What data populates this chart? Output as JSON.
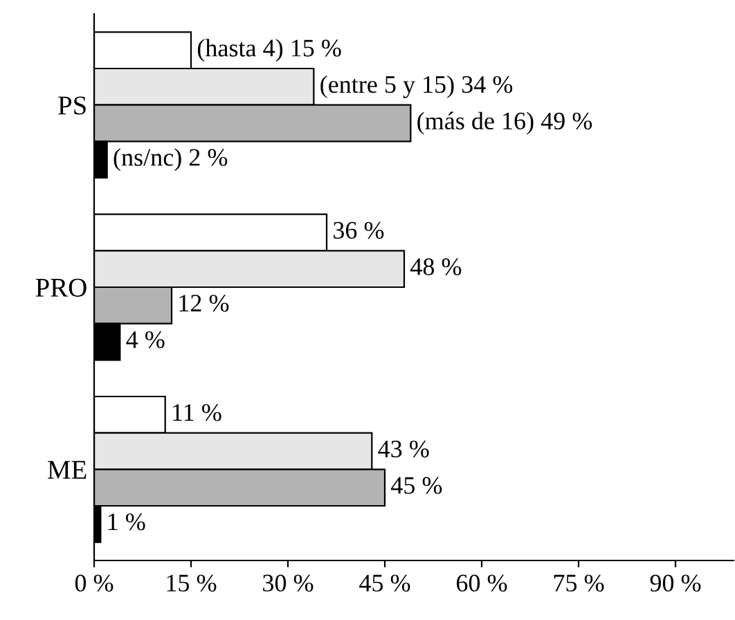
{
  "chart_data": {
    "type": "bar",
    "orientation": "horizontal",
    "categories": [
      "PS",
      "PRO",
      "ME"
    ],
    "series": [
      {
        "name": "(hasta 4)",
        "color": "#ffffff",
        "values": [
          15,
          36,
          11
        ],
        "value_labels": [
          "15 %",
          "36 %",
          "11 %"
        ]
      },
      {
        "name": "(entre 5 y 15)",
        "color": "#e6e6e6",
        "values": [
          34,
          48,
          43
        ],
        "value_labels": [
          "34 %",
          "48 %",
          "43 %"
        ]
      },
      {
        "name": "(más de 16)",
        "color": "#b3b3b3",
        "values": [
          49,
          12,
          45
        ],
        "value_labels": [
          "49 %",
          "12 %",
          "45 %"
        ]
      },
      {
        "name": "(ns/nc)",
        "color": "#000000",
        "values": [
          2,
          4,
          1
        ],
        "value_labels": [
          "2 %",
          "4 %",
          "1 %"
        ]
      }
    ],
    "xlim": [
      0,
      99
    ],
    "xticks": [
      {
        "value": 0,
        "label": "0 %"
      },
      {
        "value": 15,
        "label": "15 %"
      },
      {
        "value": 30,
        "label": "30 %"
      },
      {
        "value": 45,
        "label": "45 %"
      },
      {
        "value": 60,
        "label": "60 %"
      },
      {
        "value": 75,
        "label": "75 %"
      },
      {
        "value": 90,
        "label": "90 %"
      }
    ],
    "grid": false,
    "legend": false
  }
}
